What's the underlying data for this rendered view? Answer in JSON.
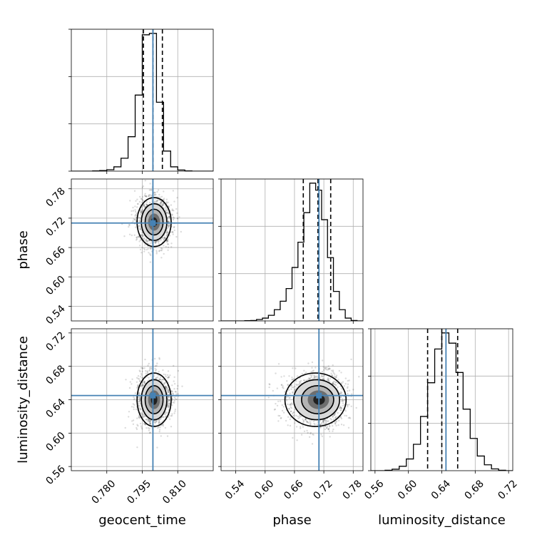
{
  "chart_data": {
    "type": "corner",
    "parameters": [
      {
        "name": "geocent_time",
        "label": "geocent_time",
        "range": [
          0.765,
          0.825
        ],
        "ticks": [
          0.78,
          0.795,
          0.81
        ],
        "tick_labels": [
          "0.780",
          "0.795",
          "0.810"
        ],
        "truth": 0.7995,
        "mean": 0.8,
        "sd": 0.0036,
        "quantiles": [
          0.7955,
          0.7995,
          0.8035
        ]
      },
      {
        "name": "phase",
        "label": "phase",
        "range": [
          0.51,
          0.8
        ],
        "ticks": [
          0.54,
          0.6,
          0.66,
          0.72,
          0.78
        ],
        "tick_labels": [
          "0.54",
          "0.60",
          "0.66",
          "0.72",
          "0.78"
        ],
        "truth": 0.71,
        "mean": 0.712,
        "sd": 0.025,
        "quantiles": [
          0.678,
          0.708,
          0.734
        ]
      },
      {
        "name": "luminosity_distance",
        "label": "luminosity_distance",
        "range": [
          0.555,
          0.725
        ],
        "ticks": [
          0.56,
          0.6,
          0.64,
          0.68,
          0.72
        ],
        "tick_labels": [
          "0.56",
          "0.60",
          "0.64",
          "0.68",
          "0.72"
        ],
        "truth": 0.645,
        "mean": 0.64,
        "sd": 0.016,
        "quantiles": [
          0.623,
          0.64,
          0.659
        ]
      }
    ],
    "histograms": {
      "geocent_time": [
        0.0,
        0.0,
        0.0,
        0.002,
        0.004,
        0.01,
        0.03,
        0.09,
        0.24,
        0.53,
        0.95,
        0.96,
        0.48,
        0.14,
        0.03,
        0.008,
        0.002,
        0.0,
        0.0,
        0.0
      ],
      "phase": [
        0.0,
        0.0,
        0.0,
        0.0,
        0.002,
        0.003,
        0.01,
        0.02,
        0.04,
        0.08,
        0.14,
        0.23,
        0.38,
        0.56,
        0.77,
        0.98,
        0.93,
        0.72,
        0.45,
        0.21,
        0.08,
        0.02,
        0.003,
        0.0
      ],
      "luminosity_distance": [
        0.0,
        0.0,
        0.003,
        0.01,
        0.03,
        0.08,
        0.18,
        0.37,
        0.6,
        0.83,
        0.94,
        0.87,
        0.67,
        0.42,
        0.22,
        0.1,
        0.04,
        0.012,
        0.003,
        0.0
      ]
    },
    "truth_color": "#4682b4",
    "hist_color": "#000000",
    "grid": true
  }
}
